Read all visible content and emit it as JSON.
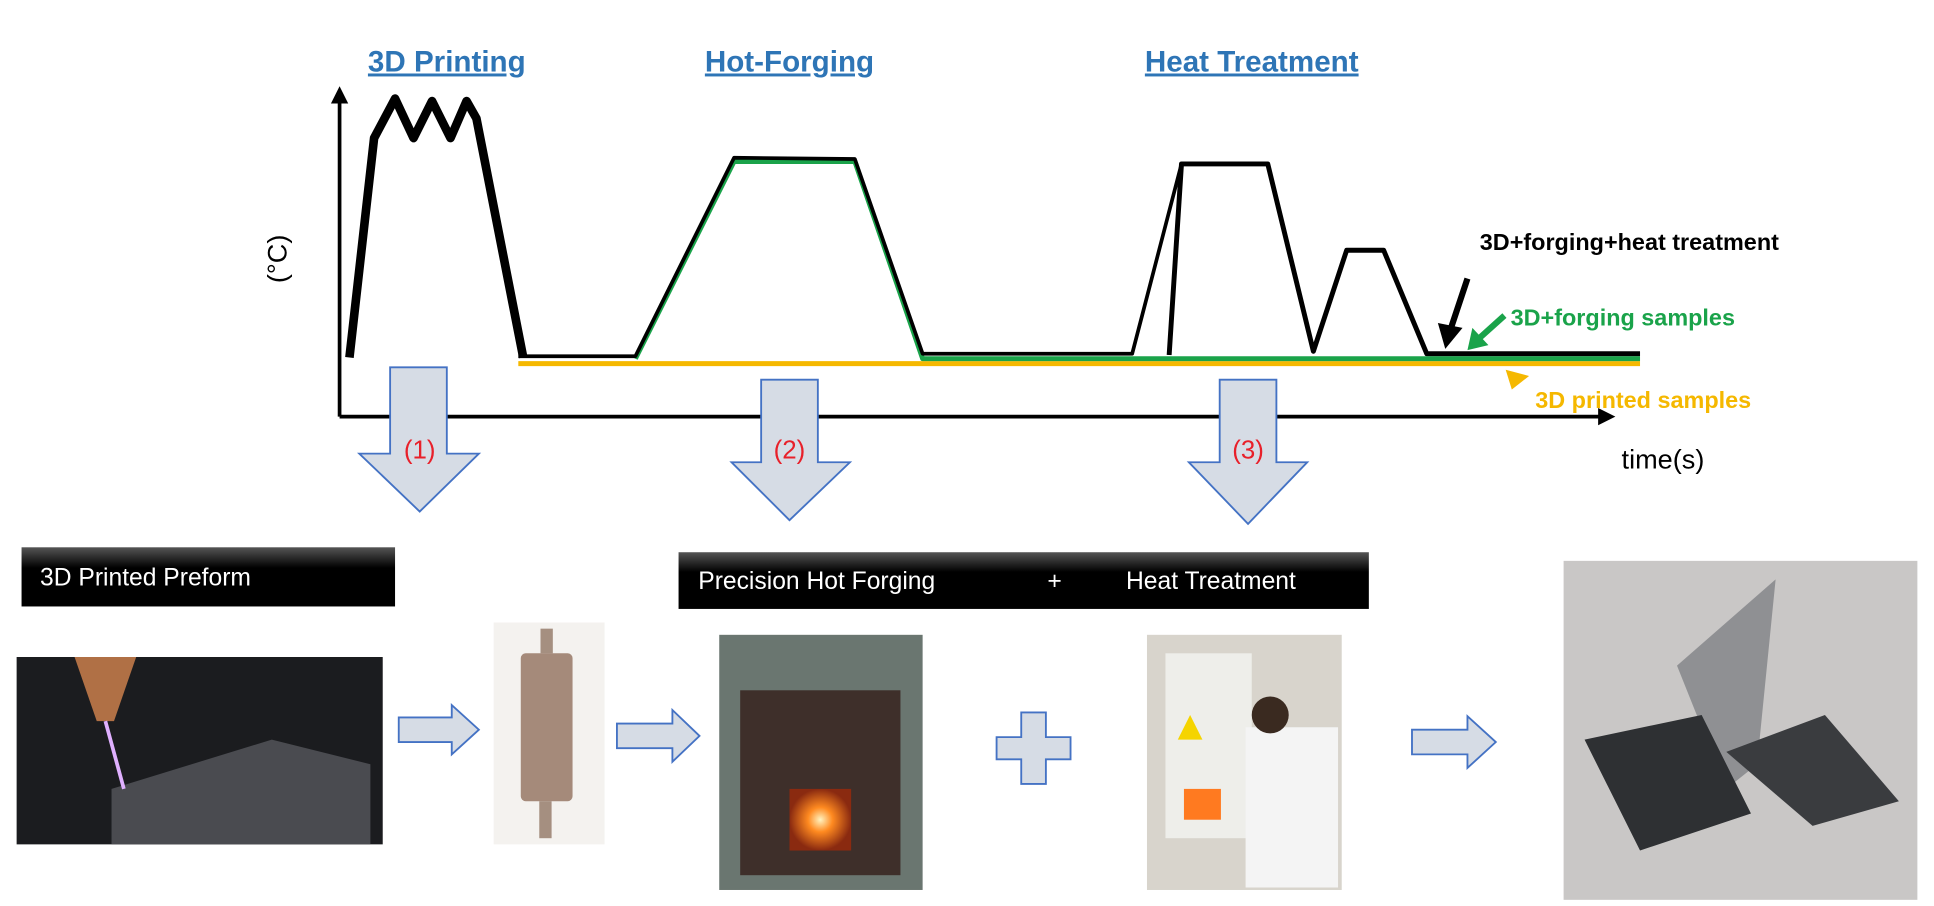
{
  "stages": {
    "printing": "3D Printing",
    "forging": "Hot-Forging",
    "heat": "Heat Treatment"
  },
  "axes": {
    "ylabel": "(°C)",
    "xlabel": "time(s)"
  },
  "legend": {
    "full": {
      "label": "3D+forging+heat treatment",
      "color": "#000000"
    },
    "forged": {
      "label": "3D+forging samples",
      "color": "#1aa34a"
    },
    "printed": {
      "label": "3D printed samples",
      "color": "#f5b800"
    }
  },
  "steps": [
    "(1)",
    "(2)",
    "(3)"
  ],
  "boxes": {
    "preform": "3D Printed Preform",
    "process_a": "Precision Hot Forging",
    "plus": "+",
    "process_b": "Heat Treatment"
  },
  "colors": {
    "title": "#2E75B6",
    "arrow_fill": "#d6dce5",
    "arrow_stroke": "#4472c4",
    "step_label": "#e8202a"
  }
}
